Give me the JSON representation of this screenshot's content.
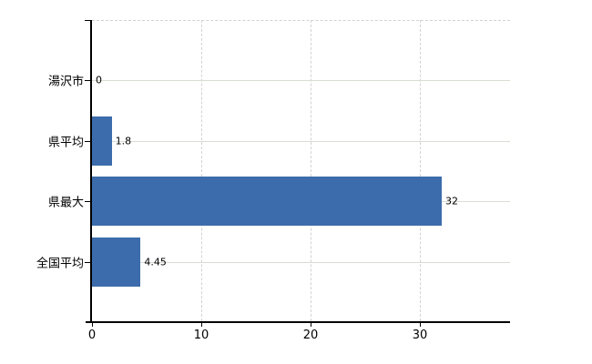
{
  "chart": {
    "background_color": "#ffffff",
    "bar_color": "#3c6cab",
    "axis_color": "#000000",
    "h_gridline_color": "#d9ded4",
    "v_gridline_color": "#d2d2d2",
    "plot_border_style": "dashed-top",
    "text_color": "#000000"
  },
  "chart_data": {
    "type": "bar",
    "orientation": "horizontal",
    "title": "",
    "xlabel": "",
    "ylabel": "",
    "categories": [
      "湯沢市",
      "県平均",
      "県最大",
      "全国平均"
    ],
    "values": [
      0,
      1.8,
      32,
      4.45
    ],
    "data_labels": [
      "0",
      "1.8",
      "32",
      "4.45"
    ],
    "x_ticks": [
      0,
      10,
      20,
      30
    ],
    "x_tick_labels": [
      "0",
      "10",
      "20",
      "30"
    ],
    "xlim": [
      0,
      38.33
    ],
    "grid": "on",
    "legend": "none"
  }
}
